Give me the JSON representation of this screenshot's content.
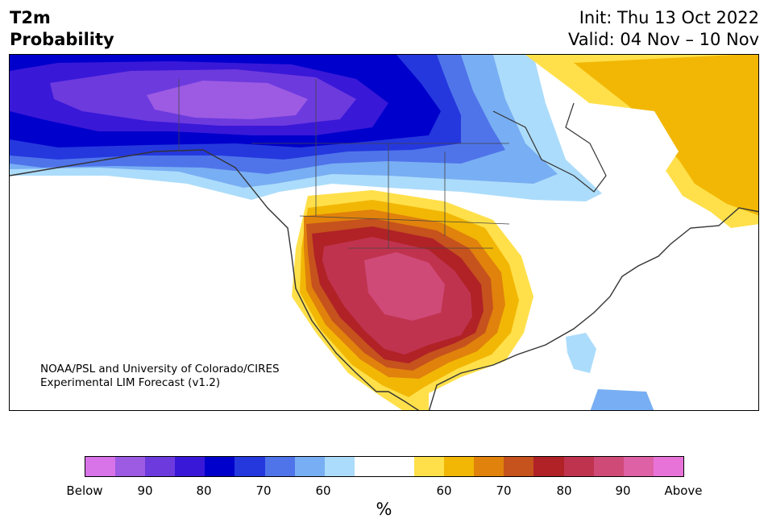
{
  "title": {
    "line1": "T2m",
    "line2": "Probability"
  },
  "dates": {
    "init": "Init: Thu 13 Oct 2022",
    "valid": "Valid: 04 Nov – 10 Nov"
  },
  "credit": {
    "line1": "NOAA/PSL and University of Colorado/CIRES",
    "line2": "Experimental LIM Forecast (v1.2)"
  },
  "colorbar": {
    "below_colors": [
      "#d873e8",
      "#9d5be3",
      "#6d3ade",
      "#3a18d8",
      "#0000cc",
      "#2538de",
      "#4f74ea",
      "#78aef3",
      "#acdcfb"
    ],
    "neutral_color": "#ffffff",
    "above_colors": [
      "#ffe04a",
      "#f2b705",
      "#e0820c",
      "#c6521d",
      "#b02226",
      "#c0334f",
      "#d04a78",
      "#de61a5",
      "#e873d8"
    ],
    "tick_labels": [
      "Below",
      "90",
      "80",
      "70",
      "60",
      "60",
      "70",
      "80",
      "90",
      "Above"
    ],
    "unit_label": "%"
  }
}
